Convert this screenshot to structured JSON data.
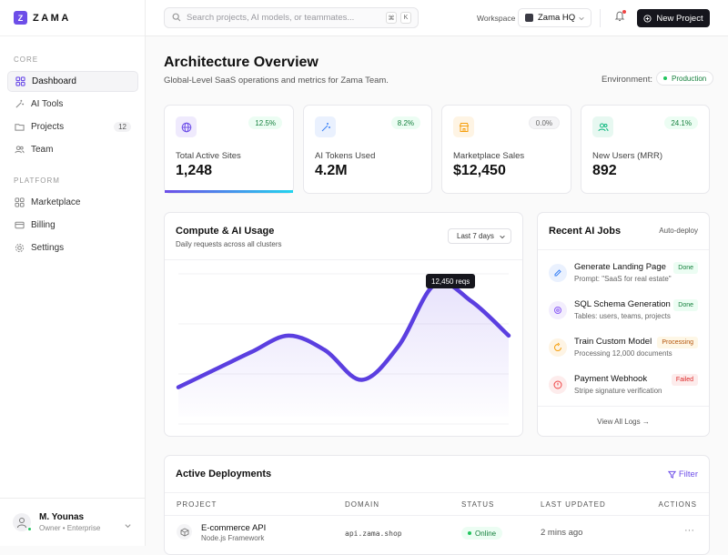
{
  "brand": {
    "logo_letter": "Z",
    "name": "ZAMA"
  },
  "sidebar": {
    "sections": [
      {
        "label": "CORE",
        "items": [
          {
            "label": "Dashboard",
            "icon": "grid-icon",
            "active": true
          },
          {
            "label": "AI Tools",
            "icon": "wand-icon"
          },
          {
            "label": "Projects",
            "icon": "folder-icon",
            "count": "12"
          },
          {
            "label": "Team",
            "icon": "users-icon"
          }
        ]
      },
      {
        "label": "PLATFORM",
        "items": [
          {
            "label": "Marketplace",
            "icon": "grid-icon"
          },
          {
            "label": "Billing",
            "icon": "credit-card-icon"
          },
          {
            "label": "Settings",
            "icon": "gear-icon"
          }
        ]
      }
    ],
    "user": {
      "name": "M. Younas",
      "role": "Owner • Enterprise"
    }
  },
  "topbar": {
    "search_placeholder": "Search projects, AI models, or teammates...",
    "shortcut_keys": [
      "⌘",
      "K"
    ],
    "workspace_label": "Workspace",
    "workspace_value": "Zama HQ",
    "new_project_label": "New Project"
  },
  "header": {
    "title": "Architecture Overview",
    "subtitle": "Global-Level SaaS operations and metrics for Zama Team.",
    "environment_label": "Environment:",
    "environment_value": "Production"
  },
  "stats": [
    {
      "label": "Total Active Sites",
      "value": "1,248",
      "change": "12.5%",
      "icon": "globe-icon",
      "accent": "#6d4ee8"
    },
    {
      "label": "AI Tokens Used",
      "value": "4.2M",
      "change": "8.2%",
      "icon": "wand-icon",
      "accent": "#3b82f6"
    },
    {
      "label": "Marketplace Sales",
      "value": "$12,450",
      "change": "0.0%",
      "icon": "store-icon",
      "accent": "#f59e0b"
    },
    {
      "label": "New Users (MRR)",
      "value": "892",
      "change": "24.1%",
      "icon": "users-icon",
      "accent": "#10b981"
    }
  ],
  "chart": {
    "title": "Compute & AI Usage",
    "subtitle": "Daily requests across all clusters",
    "range": "Last 7 days",
    "tooltip": "12,450 reqs",
    "color": "#5b3fe0"
  },
  "chart_data": {
    "type": "area",
    "title": "Compute & AI Usage",
    "series": [
      {
        "values": [
          20,
          32,
          44,
          55,
          45,
          25,
          48,
          90,
          78,
          55
        ]
      }
    ],
    "ylim": [
      0,
      100
    ],
    "grid": true,
    "highlight": {
      "index": 7,
      "label": "12,450 reqs"
    }
  },
  "jobs": {
    "title": "Recent AI Jobs",
    "mode": "Auto-deploy",
    "items": [
      {
        "name": "Generate Landing Page",
        "desc": "Prompt: \"SaaS for real estate\"",
        "status": "Done",
        "icon": "pencil-icon",
        "tone": "done"
      },
      {
        "name": "SQL Schema Generation",
        "desc": "Tables: users, teams, projects",
        "status": "Done",
        "icon": "database-icon",
        "tone": "done"
      },
      {
        "name": "Train Custom Model",
        "desc": "Processing 12,000 documents",
        "status": "Processing",
        "icon": "sync-icon",
        "tone": "processing"
      },
      {
        "name": "Payment Webhook",
        "desc": "Stripe signature verification",
        "status": "Failed",
        "icon": "alert-icon",
        "tone": "failed"
      }
    ],
    "view_all": "View All Logs →"
  },
  "deployments": {
    "title": "Active Deployments",
    "filter_label": "Filter",
    "columns": [
      "PROJECT",
      "DOMAIN",
      "STATUS",
      "LAST UPDATED",
      "ACTIONS"
    ],
    "rows": [
      {
        "project": "E-commerce API",
        "framework": "Node.js Framework",
        "domain": "api.zama.shop",
        "status": "Online",
        "updated": "2 mins ago"
      }
    ]
  }
}
